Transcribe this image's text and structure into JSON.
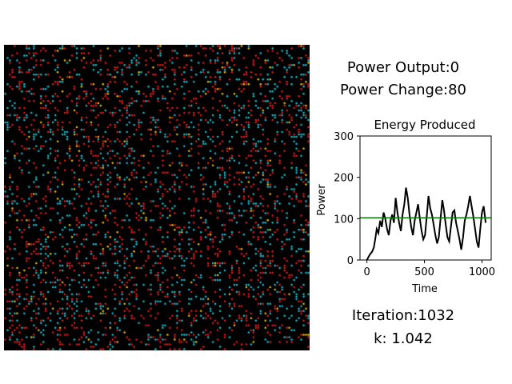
{
  "stats": {
    "power_output": "Power Output:0",
    "power_change": "Power Change:80",
    "iteration": "Iteration:1032",
    "k": "k: 1.042"
  },
  "simulation": {
    "grid_size": 128,
    "background": "#000000",
    "colors": {
      "red": "#e31a1c",
      "cyan": "#17becf",
      "yellow": "#e8c50a"
    },
    "density": {
      "red": 0.09,
      "cyan": 0.07,
      "yellow": 0.012
    }
  },
  "chart_data": {
    "type": "line",
    "title": "Energy Produced",
    "xlabel": "Time",
    "ylabel": "Power",
    "xlim": [
      -60,
      1080
    ],
    "ylim": [
      0,
      300
    ],
    "xticks": [
      0,
      500,
      1000
    ],
    "yticks": [
      0,
      100,
      200,
      300
    ],
    "grid": false,
    "series": [
      {
        "color": "#000000",
        "points": [
          [
            0,
            0
          ],
          [
            15,
            8
          ],
          [
            30,
            15
          ],
          [
            45,
            20
          ],
          [
            60,
            30
          ],
          [
            75,
            55
          ],
          [
            85,
            75
          ],
          [
            100,
            65
          ],
          [
            115,
            95
          ],
          [
            130,
            80
          ],
          [
            145,
            115
          ],
          [
            160,
            100
          ],
          [
            175,
            75
          ],
          [
            190,
            60
          ],
          [
            205,
            95
          ],
          [
            220,
            110
          ],
          [
            235,
            90
          ],
          [
            250,
            150
          ],
          [
            265,
            115
          ],
          [
            280,
            90
          ],
          [
            295,
            70
          ],
          [
            310,
            110
          ],
          [
            325,
            135
          ],
          [
            340,
            175
          ],
          [
            355,
            150
          ],
          [
            370,
            110
          ],
          [
            385,
            80
          ],
          [
            400,
            60
          ],
          [
            415,
            95
          ],
          [
            430,
            115
          ],
          [
            445,
            135
          ],
          [
            460,
            100
          ],
          [
            475,
            70
          ],
          [
            490,
            50
          ],
          [
            505,
            60
          ],
          [
            520,
            105
          ],
          [
            535,
            155
          ],
          [
            550,
            125
          ],
          [
            565,
            110
          ],
          [
            580,
            85
          ],
          [
            595,
            60
          ],
          [
            610,
            40
          ],
          [
            625,
            55
          ],
          [
            640,
            100
          ],
          [
            655,
            145
          ],
          [
            670,
            120
          ],
          [
            685,
            85
          ],
          [
            700,
            55
          ],
          [
            715,
            45
          ],
          [
            730,
            80
          ],
          [
            745,
            115
          ],
          [
            760,
            120
          ],
          [
            775,
            90
          ],
          [
            790,
            70
          ],
          [
            805,
            50
          ],
          [
            820,
            25
          ],
          [
            835,
            55
          ],
          [
            850,
            95
          ],
          [
            865,
            110
          ],
          [
            880,
            130
          ],
          [
            895,
            155
          ],
          [
            910,
            130
          ],
          [
            925,
            105
          ],
          [
            940,
            75
          ],
          [
            955,
            45
          ],
          [
            970,
            30
          ],
          [
            985,
            75
          ],
          [
            1000,
            115
          ],
          [
            1015,
            130
          ],
          [
            1032,
            90
          ]
        ]
      },
      {
        "color": "#008000",
        "points": [
          [
            -60,
            102
          ],
          [
            1080,
            102
          ]
        ]
      }
    ]
  }
}
